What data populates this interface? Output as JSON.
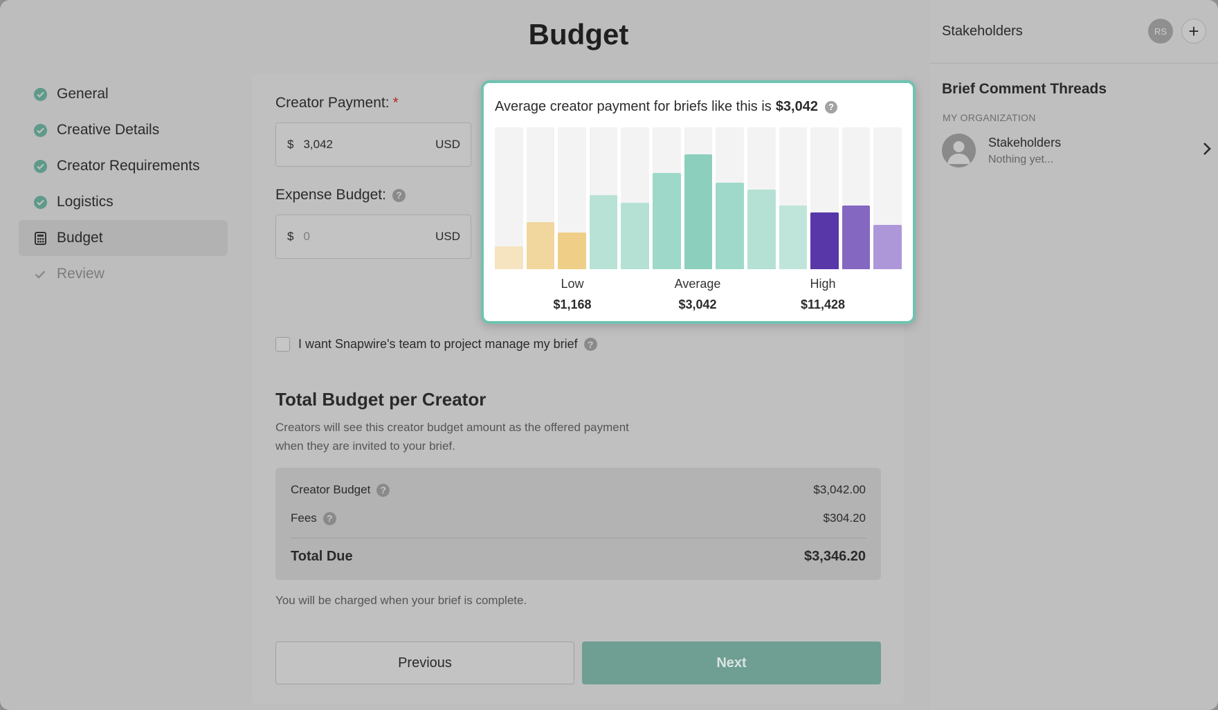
{
  "page": {
    "title": "Budget"
  },
  "nav": {
    "items": [
      {
        "label": "General",
        "state": "done",
        "icon": "check-circle-icon"
      },
      {
        "label": "Creative Details",
        "state": "done",
        "icon": "check-circle-icon"
      },
      {
        "label": "Creator Requirements",
        "state": "done",
        "icon": "check-circle-icon"
      },
      {
        "label": "Logistics",
        "state": "done",
        "icon": "check-circle-icon"
      },
      {
        "label": "Budget",
        "state": "active",
        "icon": "calculator-icon"
      },
      {
        "label": "Review",
        "state": "pending",
        "icon": "check-icon"
      }
    ]
  },
  "form": {
    "creator_payment": {
      "label": "Creator Payment:",
      "required_mark": "*",
      "symbol": "$",
      "value": "3,042",
      "currency": "USD"
    },
    "expense_budget": {
      "label": "Expense Budget:",
      "help": "?",
      "symbol": "$",
      "placeholder": "0",
      "currency": "USD"
    },
    "project_manage": {
      "label": "I want Snapwire's team to project manage my brief",
      "checked": false,
      "help": "?"
    }
  },
  "total_section": {
    "title": "Total Budget per Creator",
    "description": "Creators will see this creator budget amount as the offered payment when they are invited to your brief.",
    "rows": {
      "creator_budget": {
        "label": "Creator Budget",
        "help": "?",
        "value": "$3,042.00"
      },
      "fees": {
        "label": "Fees",
        "help": "?",
        "value": "$304.20"
      },
      "total_due": {
        "label": "Total Due",
        "value": "$3,346.20"
      }
    },
    "charge_note": "You will be charged when your brief is complete."
  },
  "buttons": {
    "previous": "Previous",
    "next": "Next"
  },
  "right_panel": {
    "stakeholders_title": "Stakeholders",
    "avatar_initials": "RS",
    "add_symbol": "+",
    "threads_title": "Brief Comment Threads",
    "org_label": "MY ORGANIZATION",
    "thread": {
      "name": "Stakeholders",
      "subtitle": "Nothing yet..."
    }
  },
  "popover": {
    "title_prefix": "Average creator payment for briefs like this is",
    "title_amount": "$3,042",
    "help": "?",
    "stats": [
      {
        "label": "Low",
        "value": "$1,168"
      },
      {
        "label": "Average",
        "value": "$3,042"
      },
      {
        "label": "High",
        "value": "$11,428"
      }
    ]
  },
  "chart_data": {
    "type": "bar",
    "values": [
      0.16,
      0.33,
      0.26,
      0.52,
      0.47,
      0.68,
      0.81,
      0.61,
      0.56,
      0.45,
      0.4,
      0.45,
      0.31
    ],
    "colors": [
      "#f6e3c0",
      "#f1d69e",
      "#efcf88",
      "#b8e2d6",
      "#b5e1d5",
      "#9dd8c8",
      "#8ccfbd",
      "#9fd9c9",
      "#b5e1d5",
      "#bfe5da",
      "#5837a8",
      "#8467c1",
      "#ad97d9"
    ],
    "track_color": "#f3f3f4",
    "groups": [
      "Low",
      "Average",
      "High"
    ]
  },
  "colors": {
    "accent": "#6fc3b0",
    "success": "#5e9a8a",
    "next_button": "#6f9e92"
  }
}
